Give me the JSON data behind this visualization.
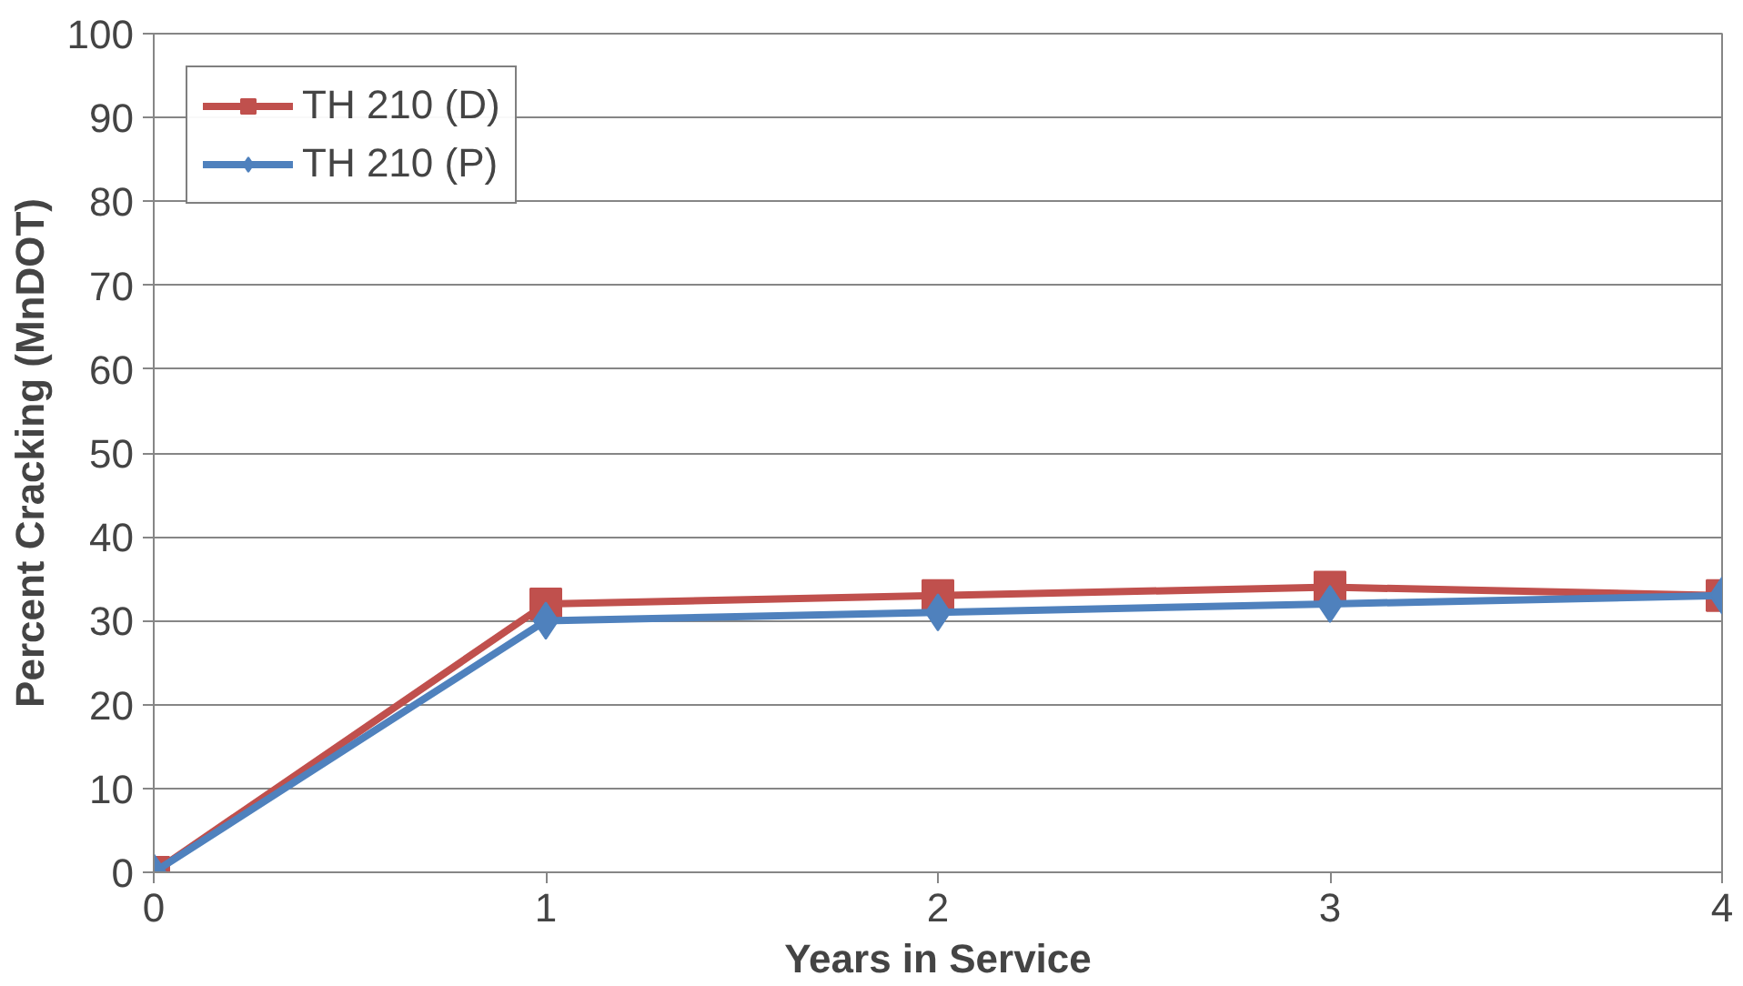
{
  "chart_data": {
    "type": "line",
    "xlabel": "Years in Service",
    "ylabel": "Percent Cracking (MnDOT)",
    "x": [
      0,
      1,
      2,
      3,
      4
    ],
    "series": [
      {
        "name": "TH 210 (D)",
        "color": "#c0504d",
        "values": [
          0,
          32,
          33,
          34,
          33
        ],
        "marker": "square"
      },
      {
        "name": "TH 210 (P)",
        "color": "#4f81bd",
        "values": [
          0,
          30,
          31,
          32,
          33
        ],
        "marker": "diamond"
      }
    ],
    "xlim": [
      0,
      4
    ],
    "xticks": [
      0,
      1,
      2,
      3,
      4
    ],
    "ylim": [
      0,
      100
    ],
    "yticks": [
      0,
      10,
      20,
      30,
      40,
      50,
      60,
      70,
      80,
      90,
      100
    ],
    "grid": "y",
    "legend": "top left",
    "line_style": "solid"
  }
}
